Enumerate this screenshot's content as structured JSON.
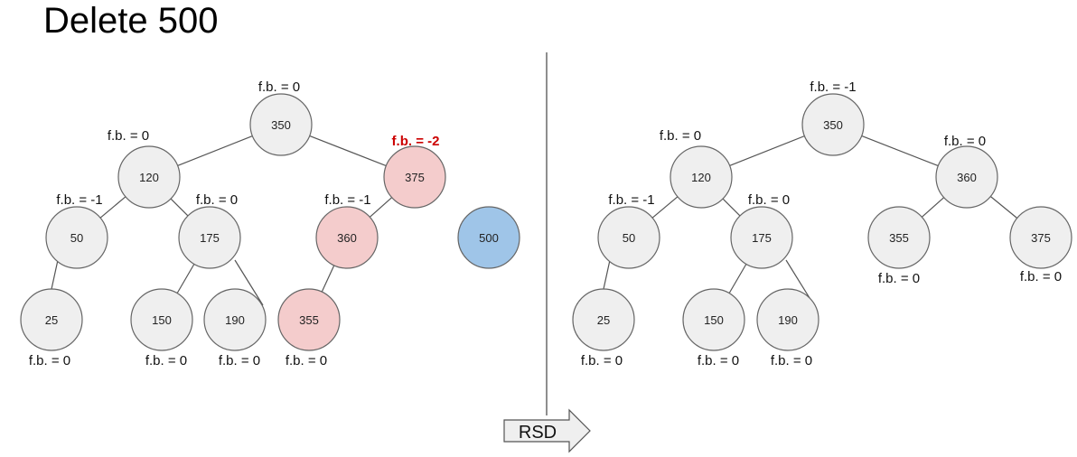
{
  "title": "Delete 500",
  "arrow_label": "RSD",
  "colors": {
    "normal": "#efefef",
    "highlight": "#f4cccc",
    "deleted": "#9fc5e8",
    "highlight_text": "#cc0000"
  },
  "left_tree": {
    "nodes": [
      {
        "value": "350",
        "fb": "f.b. = 0",
        "state": "normal"
      },
      {
        "value": "120",
        "fb": "f.b. = 0",
        "state": "normal"
      },
      {
        "value": "375",
        "fb": "f.b. = -2",
        "state": "highlight"
      },
      {
        "value": "50",
        "fb": "f.b. = -1",
        "state": "normal"
      },
      {
        "value": "175",
        "fb": "f.b. = 0",
        "state": "normal"
      },
      {
        "value": "360",
        "fb": "f.b. = -1",
        "state": "highlight"
      },
      {
        "value": "500",
        "fb": "",
        "state": "deleted"
      },
      {
        "value": "25",
        "fb": "f.b. = 0",
        "state": "normal"
      },
      {
        "value": "150",
        "fb": "f.b. = 0",
        "state": "normal"
      },
      {
        "value": "190",
        "fb": "f.b. = 0",
        "state": "normal"
      },
      {
        "value": "355",
        "fb": "f.b. = 0",
        "state": "highlight"
      }
    ]
  },
  "right_tree": {
    "nodes": [
      {
        "value": "350",
        "fb": "f.b. = -1",
        "state": "normal"
      },
      {
        "value": "120",
        "fb": "f.b. = 0",
        "state": "normal"
      },
      {
        "value": "360",
        "fb": "f.b. = 0",
        "state": "normal"
      },
      {
        "value": "50",
        "fb": "f.b. = -1",
        "state": "normal"
      },
      {
        "value": "175",
        "fb": "f.b. = 0",
        "state": "normal"
      },
      {
        "value": "355",
        "fb": "f.b. = 0",
        "state": "normal"
      },
      {
        "value": "375",
        "fb": "f.b. = 0",
        "state": "normal"
      },
      {
        "value": "25",
        "fb": "f.b. = 0",
        "state": "normal"
      },
      {
        "value": "150",
        "fb": "f.b. = 0",
        "state": "normal"
      },
      {
        "value": "190",
        "fb": "f.b. = 0",
        "state": "normal"
      }
    ]
  }
}
